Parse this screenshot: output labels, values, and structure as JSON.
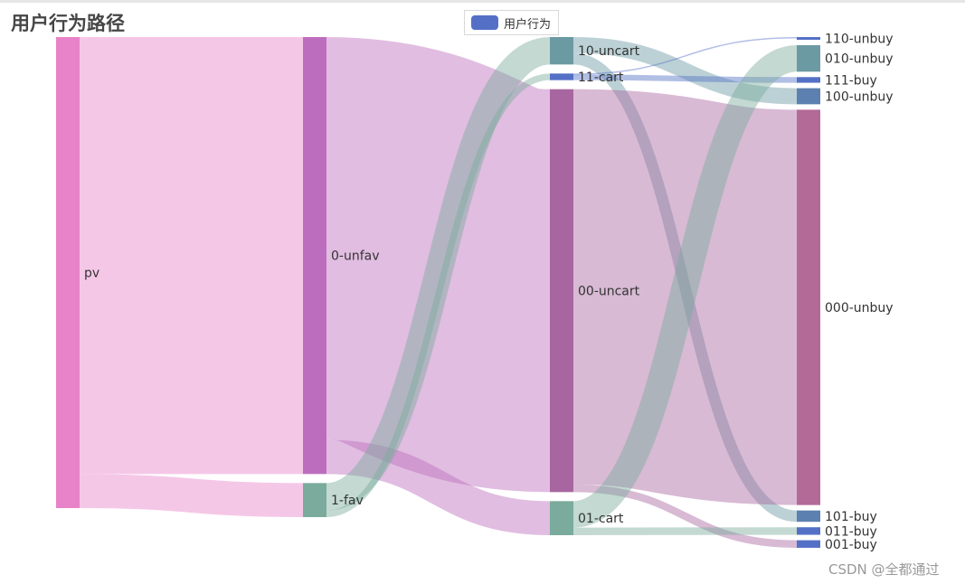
{
  "title": "用户行为路径",
  "legend": {
    "label": "用户行为",
    "color": "#5470c6"
  },
  "watermark": "CSDN @全都通过",
  "chart_data": {
    "type": "sankey",
    "title": "用户行为路径",
    "series_name": "用户行为",
    "nodes": [
      {
        "name": "pv",
        "color": "#e882c9"
      },
      {
        "name": "0-unfav",
        "color": "#bd6dbd"
      },
      {
        "name": "1-fav",
        "color": "#7aab9c"
      },
      {
        "name": "10-uncart",
        "color": "#6b9aa3"
      },
      {
        "name": "11-cart",
        "color": "#5470c6"
      },
      {
        "name": "00-uncart",
        "color": "#a866a0"
      },
      {
        "name": "01-cart",
        "color": "#7aab9c"
      },
      {
        "name": "110-unbuy",
        "color": "#5470c6"
      },
      {
        "name": "010-unbuy",
        "color": "#6b9aa3"
      },
      {
        "name": "111-buy",
        "color": "#5470c6"
      },
      {
        "name": "100-unbuy",
        "color": "#5c80b0"
      },
      {
        "name": "000-unbuy",
        "color": "#b36a97"
      },
      {
        "name": "101-buy",
        "color": "#5c80b0"
      },
      {
        "name": "011-buy",
        "color": "#5470c6"
      },
      {
        "name": "001-buy",
        "color": "#5470c6"
      }
    ],
    "links": [
      {
        "source": "pv",
        "target": "0-unfav",
        "value": 462
      },
      {
        "source": "pv",
        "target": "1-fav",
        "value": 36
      },
      {
        "source": "0-unfav",
        "target": "00-uncart",
        "value": 426
      },
      {
        "source": "0-unfav",
        "target": "01-cart",
        "value": 36
      },
      {
        "source": "1-fav",
        "target": "10-uncart",
        "value": 29
      },
      {
        "source": "1-fav",
        "target": "11-cart",
        "value": 7
      },
      {
        "source": "10-uncart",
        "target": "100-unbuy",
        "value": 17
      },
      {
        "source": "10-uncart",
        "target": "101-buy",
        "value": 12
      },
      {
        "source": "11-cart",
        "target": "110-unbuy",
        "value": 1
      },
      {
        "source": "11-cart",
        "target": "111-buy",
        "value": 6
      },
      {
        "source": "00-uncart",
        "target": "000-unbuy",
        "value": 418
      },
      {
        "source": "00-uncart",
        "target": "001-buy",
        "value": 8
      },
      {
        "source": "01-cart",
        "target": "010-unbuy",
        "value": 28
      },
      {
        "source": "01-cart",
        "target": "011-buy",
        "value": 8
      }
    ],
    "layout": "horizontal"
  }
}
